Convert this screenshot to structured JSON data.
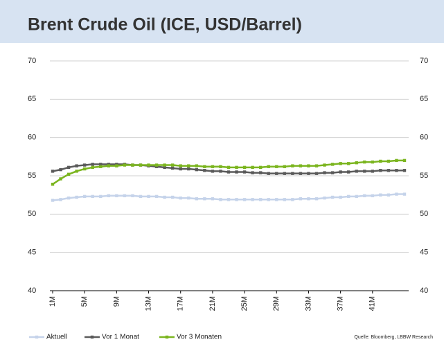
{
  "chart_data": {
    "type": "line",
    "title": "Brent Crude Oil (ICE, USD/Barrel)",
    "source": "Quelle: Bloomberg, LBBW Research",
    "categories": [
      "1M",
      null,
      null,
      null,
      "5M",
      null,
      null,
      null,
      "9M",
      null,
      null,
      null,
      "13M",
      null,
      null,
      null,
      "17M",
      null,
      null,
      null,
      "21M",
      null,
      null,
      null,
      "25M",
      null,
      null,
      null,
      "29M",
      null,
      null,
      null,
      "33M",
      null,
      null,
      null,
      "37M",
      null,
      null,
      null,
      "41M",
      null,
      null,
      null,
      null
    ],
    "series": [
      {
        "name": "Aktuell",
        "color": "#c5d3ea",
        "values": [
          51.8,
          51.9,
          52.1,
          52.2,
          52.3,
          52.3,
          52.3,
          52.4,
          52.4,
          52.4,
          52.4,
          52.3,
          52.3,
          52.3,
          52.2,
          52.2,
          52.1,
          52.1,
          52.0,
          52.0,
          52.0,
          51.9,
          51.9,
          51.9,
          51.9,
          51.9,
          51.9,
          51.9,
          51.9,
          51.9,
          51.9,
          52.0,
          52.0,
          52.0,
          52.1,
          52.2,
          52.2,
          52.3,
          52.3,
          52.4,
          52.4,
          52.5,
          52.5,
          52.6,
          52.6
        ]
      },
      {
        "name": "Vor 1 Monat",
        "color": "#5a5a5a",
        "values": [
          55.6,
          55.8,
          56.1,
          56.3,
          56.4,
          56.5,
          56.5,
          56.5,
          56.5,
          56.5,
          56.4,
          56.4,
          56.3,
          56.2,
          56.1,
          56.0,
          55.9,
          55.9,
          55.8,
          55.7,
          55.6,
          55.6,
          55.5,
          55.5,
          55.5,
          55.4,
          55.4,
          55.3,
          55.3,
          55.3,
          55.3,
          55.3,
          55.3,
          55.3,
          55.4,
          55.4,
          55.5,
          55.5,
          55.6,
          55.6,
          55.6,
          55.7,
          55.7,
          55.7,
          55.7
        ]
      },
      {
        "name": "Vor 3 Monaten",
        "color": "#7bb51f",
        "values": [
          53.9,
          54.6,
          55.2,
          55.6,
          55.9,
          56.1,
          56.2,
          56.3,
          56.3,
          56.4,
          56.4,
          56.4,
          56.4,
          56.4,
          56.4,
          56.4,
          56.3,
          56.3,
          56.3,
          56.2,
          56.2,
          56.2,
          56.1,
          56.1,
          56.1,
          56.1,
          56.1,
          56.2,
          56.2,
          56.2,
          56.3,
          56.3,
          56.3,
          56.3,
          56.4,
          56.5,
          56.6,
          56.6,
          56.7,
          56.8,
          56.8,
          56.9,
          56.9,
          57.0,
          57.0
        ]
      }
    ],
    "ylim": [
      40,
      70
    ],
    "yticks": [
      40,
      45,
      50,
      55,
      60,
      65,
      70
    ],
    "grid": true
  }
}
